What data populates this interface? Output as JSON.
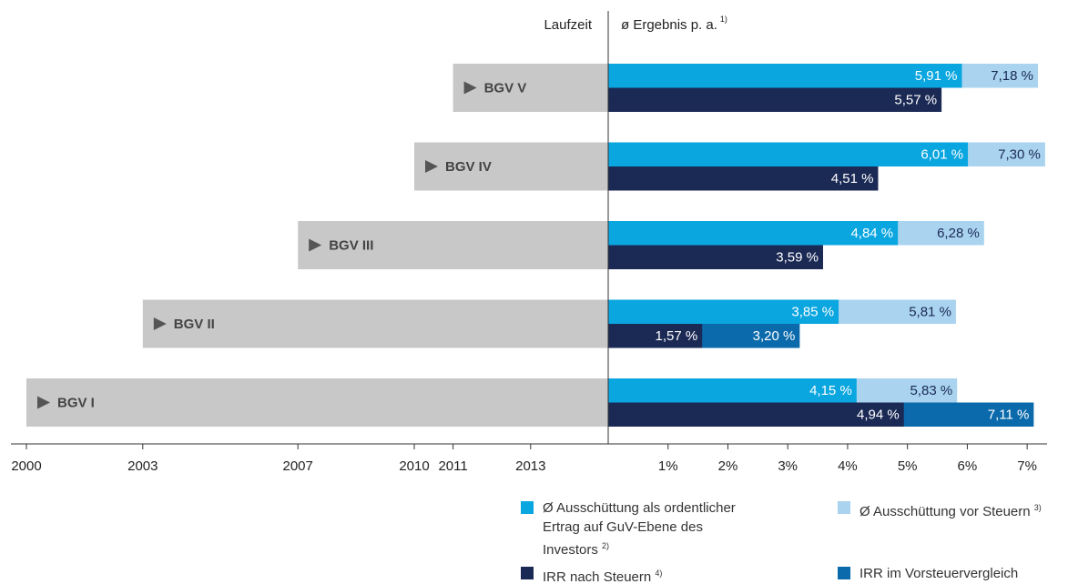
{
  "chart_data": [
    {
      "type": "range",
      "label": "Laufzeit",
      "categories": [
        "BGV V",
        "BGV IV",
        "BGV III",
        "BGV II",
        "BGV I"
      ],
      "values": [
        2011,
        2010,
        2007,
        2003,
        2000
      ],
      "color": "#c8c8c8",
      "xlim": [
        2000,
        2015
      ],
      "xticks": [
        2000,
        2003,
        2007,
        2010,
        2011,
        2013
      ]
    },
    {
      "type": "bar",
      "orientation": "horizontal",
      "title": "ø Ergebnis p. a.",
      "title_footnote": "1)",
      "xlim": [
        0,
        7.5
      ],
      "xticks": [
        {
          "value": 1,
          "label": "1%"
        },
        {
          "value": 2,
          "label": "2%"
        },
        {
          "value": 3,
          "label": "3%"
        },
        {
          "value": 4,
          "label": "4%"
        },
        {
          "value": 5,
          "label": "5%"
        },
        {
          "value": 6,
          "label": "6%"
        },
        {
          "value": 7,
          "label": "7%"
        }
      ],
      "series": [
        {
          "name": "Ø Ausschüttung als ordentlicher Ertrag auf GuV-Ebene des Investors",
          "footnote": "2)",
          "color": "#0aa6e0",
          "values": [
            5.91,
            6.01,
            4.84,
            3.85,
            4.15
          ],
          "value_labels": [
            "5,91 %",
            "6,01 %",
            "4,84 %",
            "3,85 %",
            "4,15 %"
          ]
        },
        {
          "name": "Ø Ausschüttung vor Steuern",
          "footnote": "3)",
          "color": "#a9d3ef",
          "values": [
            7.18,
            7.3,
            6.28,
            5.81,
            5.83
          ],
          "value_labels": [
            "7,18 %",
            "7,30 %",
            "6,28 %",
            "5,81 %",
            "5,83 %"
          ]
        },
        {
          "name": "IRR nach Steuern",
          "footnote": "4)",
          "color": "#1b2a55",
          "values": [
            5.57,
            4.51,
            3.59,
            1.57,
            4.94
          ],
          "value_labels": [
            "5,57 %",
            "4,51 %",
            "3,59 %",
            "1,57 %",
            "4,94 %"
          ]
        },
        {
          "name": "IRR im Vorsteuervergleich",
          "color": "#0a6aab",
          "values": [
            null,
            null,
            null,
            3.2,
            7.11
          ],
          "value_labels": [
            null,
            null,
            null,
            "3,20 %",
            "7,11 %"
          ]
        }
      ]
    }
  ]
}
